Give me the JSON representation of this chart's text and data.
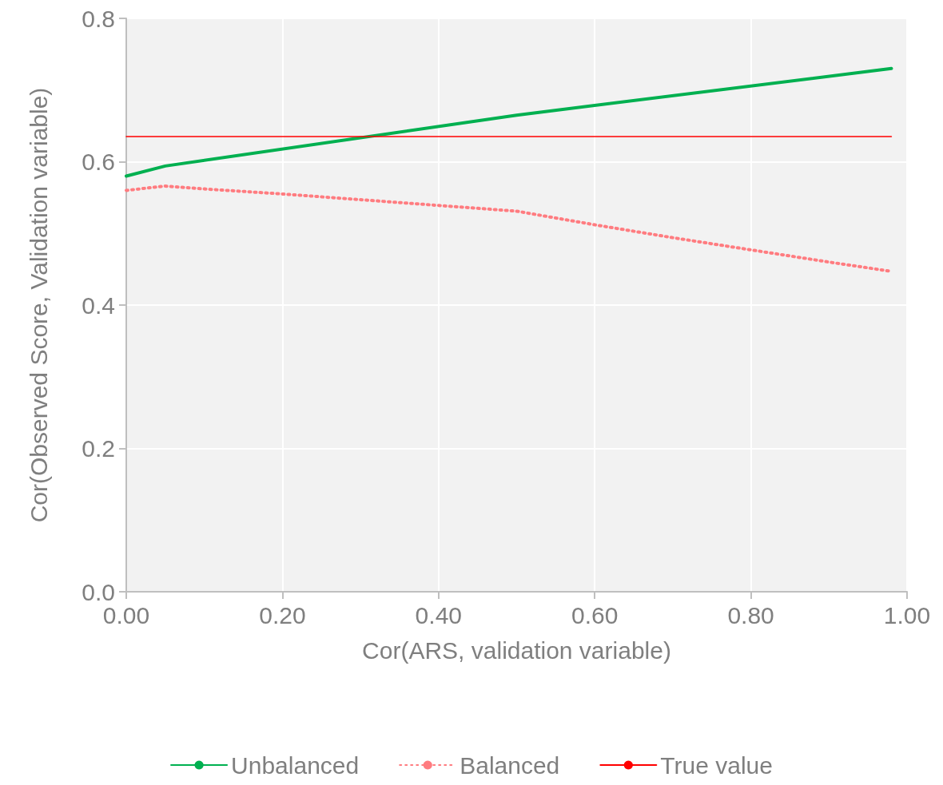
{
  "chart_data": {
    "type": "line",
    "xlabel": "Cor(ARS, validation variable)",
    "ylabel": "Cor(Observed Score, Validation variable)",
    "xlim": [
      0,
      1
    ],
    "xticks": [
      {
        "value": 0,
        "label": "0.00"
      },
      {
        "value": 0.2,
        "label": "0.20"
      },
      {
        "value": 0.4,
        "label": "0.40"
      },
      {
        "value": 0.6,
        "label": "0.60"
      },
      {
        "value": 0.8,
        "label": "0.80"
      },
      {
        "value": 1,
        "label": "1.00"
      }
    ],
    "ylim": [
      0,
      0.8
    ],
    "yticks": [
      {
        "value": 0,
        "label": "0.0"
      },
      {
        "value": 0.2,
        "label": "0.2"
      },
      {
        "value": 0.4,
        "label": "0.4"
      },
      {
        "value": 0.6,
        "label": "0.6"
      },
      {
        "value": 0.8,
        "label": "0.8"
      }
    ],
    "grid": true,
    "legend": "bottom",
    "marker": "none",
    "series": [
      {
        "name": "Unbalanced",
        "color": "#00b050",
        "line_style": "solid",
        "x": [
          0,
          0.05,
          0.5,
          0.98
        ],
        "values": [
          0.58,
          0.594,
          0.665,
          0.73
        ]
      },
      {
        "name": "Balanced",
        "color": "#ff7c80",
        "line_style": "dotted",
        "x": [
          0,
          0.05,
          0.1,
          0.2,
          0.3,
          0.4,
          0.5,
          0.6,
          0.7,
          0.8,
          0.9,
          0.98
        ],
        "values": [
          0.56,
          0.566,
          0.562,
          0.555,
          0.547,
          0.539,
          0.531,
          0.512,
          0.494,
          0.477,
          0.46,
          0.447
        ]
      },
      {
        "name": "True value",
        "color": "#ff0000",
        "line_style": "solid",
        "x": [
          0,
          0.98
        ],
        "values": [
          0.635,
          0.635
        ]
      }
    ]
  }
}
